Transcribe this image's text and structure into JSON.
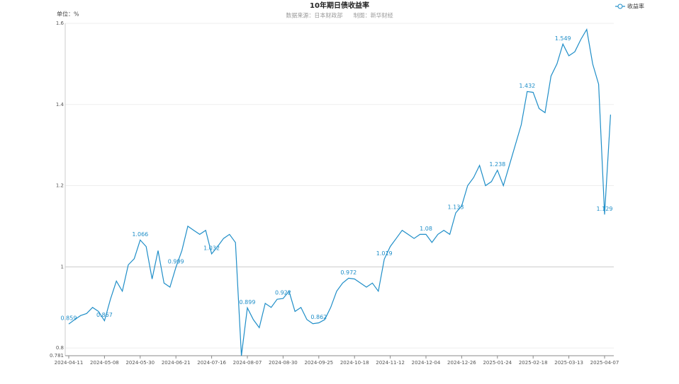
{
  "chart_data": {
    "type": "line",
    "title": "10年期日债收益率",
    "subtitle": "数据来源：日本财政部      制图：新华财经",
    "y_axis_label": "单位：%",
    "categories": [
      "2024-04-11",
      null,
      null,
      null,
      null,
      null,
      "2024-05-08",
      null,
      null,
      null,
      null,
      null,
      "2024-05-30",
      null,
      null,
      null,
      null,
      null,
      "2024-06-21",
      null,
      null,
      null,
      null,
      null,
      "2024-07-16",
      null,
      null,
      null,
      null,
      null,
      "2024-08-07",
      null,
      null,
      null,
      null,
      null,
      "2024-08-30",
      null,
      null,
      null,
      null,
      null,
      "2024-09-25",
      null,
      null,
      null,
      null,
      null,
      "2024-10-18",
      null,
      null,
      null,
      null,
      null,
      "2024-11-12",
      null,
      null,
      null,
      null,
      null,
      "2024-12-04",
      null,
      null,
      null,
      null,
      null,
      "2024-12-26",
      null,
      null,
      null,
      null,
      null,
      "2025-01-24",
      null,
      null,
      null,
      null,
      null,
      "2025-02-18",
      null,
      null,
      null,
      null,
      null,
      "2025-03-13",
      null,
      null,
      null,
      null,
      null,
      "2025-04-07",
      null
    ],
    "series": [
      {
        "name": "收益率",
        "color": "#1f8ec8",
        "values": [
          0.859,
          0.87,
          0.88,
          0.885,
          0.9,
          0.89,
          0.867,
          0.92,
          0.965,
          0.94,
          1.005,
          1.02,
          1.066,
          1.05,
          0.97,
          1.04,
          0.96,
          0.95,
          0.999,
          1.04,
          1.1,
          1.09,
          1.08,
          1.09,
          1.032,
          1.05,
          1.07,
          1.08,
          1.06,
          0.781,
          0.899,
          0.87,
          0.85,
          0.91,
          0.9,
          0.92,
          0.922,
          0.94,
          0.89,
          0.9,
          0.87,
          0.86,
          0.862,
          0.87,
          0.9,
          0.94,
          0.96,
          0.972,
          0.97,
          0.96,
          0.95,
          0.96,
          0.94,
          1.019,
          1.05,
          1.07,
          1.09,
          1.08,
          1.07,
          1.08,
          1.08,
          1.06,
          1.08,
          1.09,
          1.08,
          1.133,
          1.15,
          1.2,
          1.22,
          1.25,
          1.2,
          1.21,
          1.238,
          1.2,
          1.25,
          1.3,
          1.35,
          1.432,
          1.43,
          1.39,
          1.38,
          1.47,
          1.5,
          1.549,
          1.52,
          1.53,
          1.56,
          1.585,
          1.5,
          1.45,
          1.129,
          1.375
        ],
        "value_labels": [
          "0.859",
          null,
          null,
          null,
          null,
          null,
          "0.867",
          null,
          null,
          null,
          null,
          null,
          "1.066",
          null,
          null,
          null,
          null,
          null,
          "0.999",
          null,
          null,
          null,
          null,
          null,
          "1.032",
          null,
          null,
          null,
          null,
          null,
          "0.899",
          null,
          null,
          null,
          null,
          null,
          "0.922",
          null,
          null,
          null,
          null,
          null,
          "0.862",
          null,
          null,
          null,
          null,
          "0.972",
          null,
          null,
          null,
          null,
          null,
          "1.019",
          null,
          null,
          null,
          null,
          null,
          null,
          "1.08",
          null,
          null,
          null,
          null,
          "1.133",
          null,
          null,
          null,
          null,
          null,
          null,
          "1.238",
          null,
          null,
          null,
          null,
          "1.432",
          null,
          null,
          null,
          null,
          null,
          "1.549",
          null,
          null,
          null,
          null,
          null,
          null,
          "1.129",
          null
        ]
      }
    ],
    "ylim": [
      0.781,
      1.6
    ],
    "yticks": [
      0.781,
      0.8,
      1,
      1.2,
      1.4,
      1.6
    ],
    "grid": true,
    "legend": "top-right"
  }
}
